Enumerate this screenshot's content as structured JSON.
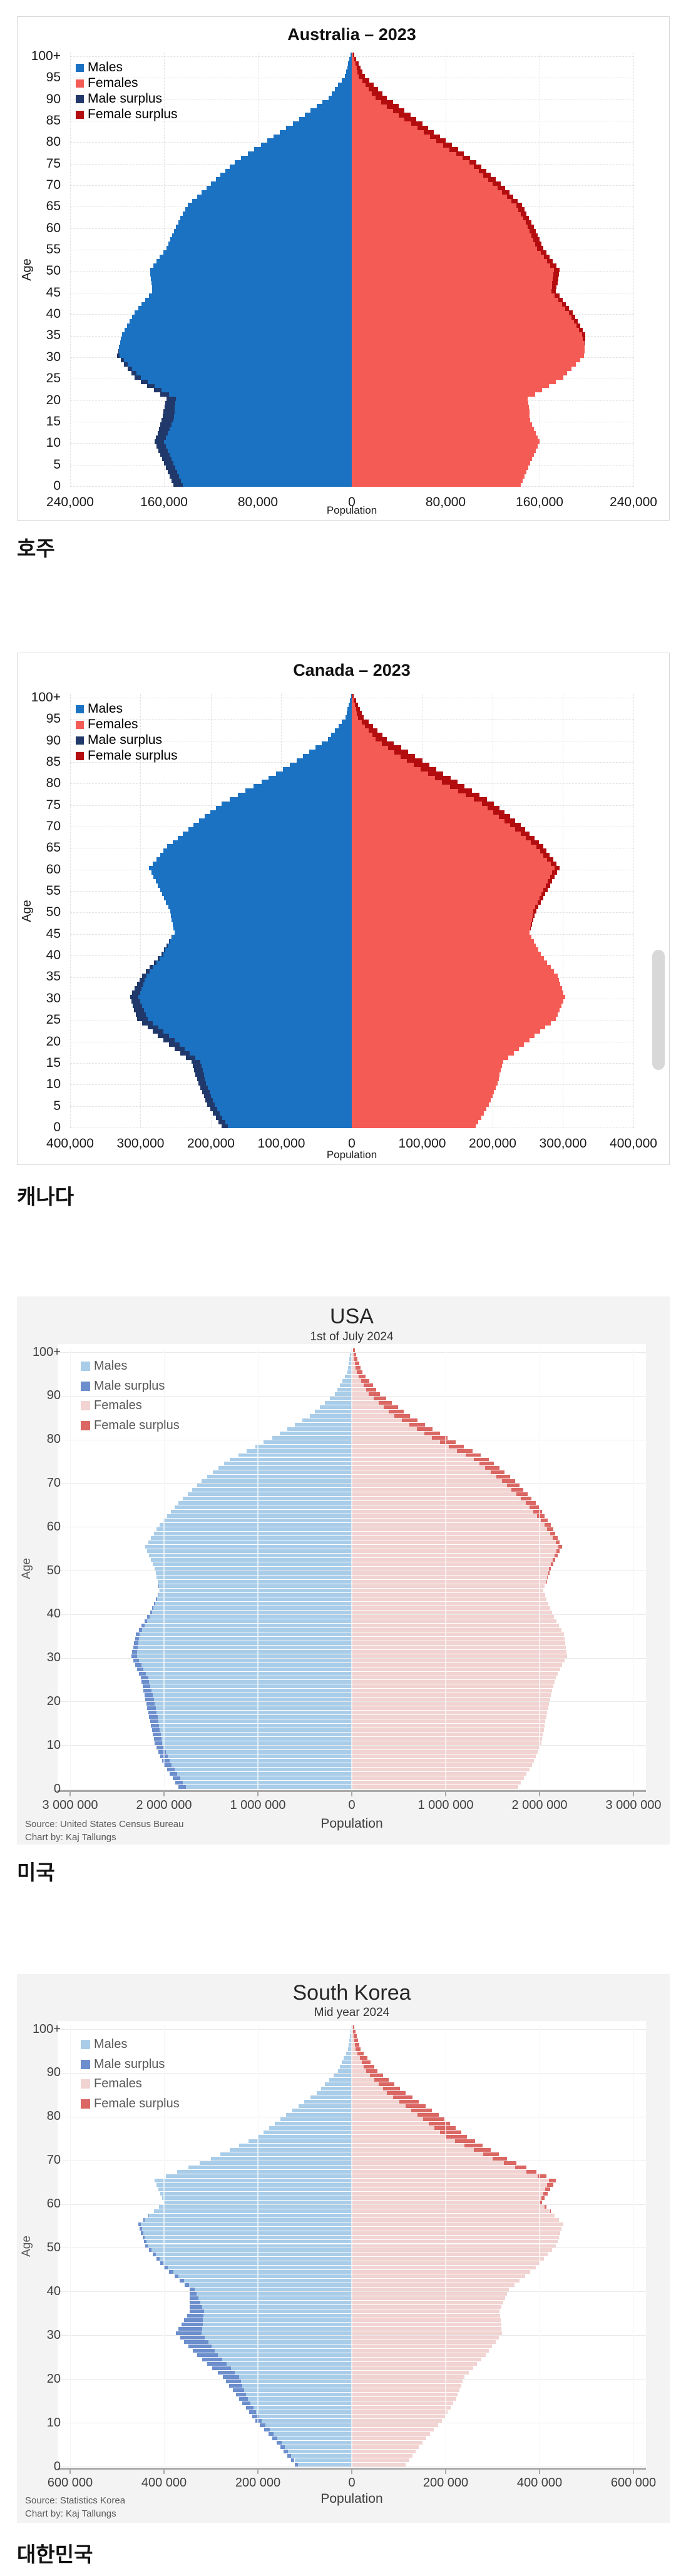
{
  "chart_data": [
    {
      "type": "bar",
      "variant": "population-pyramid",
      "country": "Australia",
      "title": "Australia – 2023",
      "subtitle": null,
      "caption": "호주",
      "xlabel": "Population",
      "ylabel": "Age",
      "legend": [
        {
          "label": "Males",
          "color": "#1B72C2"
        },
        {
          "label": "Females",
          "color": "#F55B55"
        },
        {
          "label": "Male surplus",
          "color": "#21386A"
        },
        {
          "label": "Female surplus",
          "color": "#B30D10"
        }
      ],
      "axis_max": 240000,
      "x_tick_labels": [
        "240,000",
        "160,000",
        "80,000",
        "0",
        "80,000",
        "160,000",
        "240,000"
      ],
      "y_tick_labels": [
        "0",
        "5",
        "10",
        "15",
        "20",
        "25",
        "30",
        "35",
        "40",
        "45",
        "50",
        "55",
        "60",
        "65",
        "70",
        "75",
        "80",
        "85",
        "90",
        "95",
        "100+"
      ],
      "ages": [
        0,
        5,
        10,
        15,
        20,
        25,
        30,
        35,
        40,
        45,
        50,
        55,
        60,
        65,
        70,
        75,
        80,
        85,
        90,
        95,
        100
      ],
      "series": [
        {
          "name": "Males",
          "values": [
            152000,
            160000,
            168000,
            162000,
            158000,
            185000,
            200000,
            196000,
            185000,
            170000,
            172000,
            158000,
            150000,
            140000,
            120000,
            100000,
            72000,
            45000,
            20000,
            6000,
            1000
          ]
        },
        {
          "name": "Females",
          "values": [
            144000,
            152000,
            160000,
            152000,
            150000,
            180000,
            198000,
            199000,
            188000,
            174000,
            177000,
            163000,
            155000,
            145000,
            127000,
            106000,
            80000,
            55000,
            30000,
            11000,
            2000
          ]
        }
      ],
      "source": null,
      "chart_by": null
    },
    {
      "type": "bar",
      "variant": "population-pyramid",
      "country": "Canada",
      "title": "Canada – 2023",
      "subtitle": null,
      "caption": "캐나다",
      "xlabel": "Population",
      "ylabel": "Age",
      "legend": [
        {
          "label": "Males",
          "color": "#1B72C2"
        },
        {
          "label": "Females",
          "color": "#F55B55"
        },
        {
          "label": "Male surplus",
          "color": "#21386A"
        },
        {
          "label": "Female surplus",
          "color": "#B30D10"
        }
      ],
      "axis_max": 400000,
      "x_tick_labels": [
        "400,000",
        "300,000",
        "200,000",
        "100,000",
        "0",
        "100,000",
        "200,000",
        "300,000",
        "400,000"
      ],
      "y_tick_labels": [
        "0",
        "5",
        "10",
        "15",
        "20",
        "25",
        "30",
        "35",
        "40",
        "45",
        "50",
        "55",
        "60",
        "65",
        "70",
        "75",
        "80",
        "85",
        "90",
        "95",
        "100+"
      ],
      "ages": [
        0,
        5,
        10,
        15,
        20,
        25,
        30,
        35,
        40,
        45,
        50,
        55,
        60,
        65,
        70,
        75,
        80,
        85,
        90,
        95,
        100
      ],
      "series": [
        {
          "name": "Males",
          "values": [
            185000,
            205000,
            218000,
            228000,
            268000,
            305000,
            315000,
            298000,
            270000,
            252000,
            258000,
            272000,
            288000,
            262000,
            225000,
            185000,
            128000,
            78000,
            34000,
            9000,
            1000
          ]
        },
        {
          "name": "Females",
          "values": [
            176000,
            195000,
            207000,
            215000,
            252000,
            290000,
            303000,
            292000,
            268000,
            252000,
            262000,
            278000,
            295000,
            272000,
            240000,
            202000,
            150000,
            100000,
            50000,
            17000,
            3000
          ]
        }
      ],
      "source": null,
      "chart_by": null
    },
    {
      "type": "bar",
      "variant": "population-pyramid",
      "country": "USA",
      "title": "USA",
      "subtitle": "1st of July 2024",
      "caption": "미국",
      "xlabel": "Population",
      "ylabel": "Age",
      "legend": [
        {
          "label": "Males",
          "color": "#A9CDE9"
        },
        {
          "label": "Male surplus",
          "color": "#6C8ECD"
        },
        {
          "label": "Females",
          "color": "#F1D3D1"
        },
        {
          "label": "Female surplus",
          "color": "#DA6763"
        }
      ],
      "axis_max": 3000000,
      "x_tick_labels": [
        "3 000 000",
        "2 000 000",
        "1 000 000",
        "0",
        "1 000 000",
        "2 000 000",
        "3 000 000"
      ],
      "y_tick_labels": [
        "0",
        "10",
        "20",
        "30",
        "40",
        "50",
        "60",
        "70",
        "80",
        "90",
        "100+"
      ],
      "ages": [
        0,
        5,
        10,
        15,
        20,
        25,
        30,
        35,
        40,
        45,
        50,
        55,
        60,
        65,
        70,
        75,
        80,
        85,
        90,
        95,
        100
      ],
      "series": [
        {
          "name": "Males",
          "values": [
            1850000,
            2000000,
            2100000,
            2150000,
            2200000,
            2250000,
            2350000,
            2300000,
            2150000,
            2050000,
            2100000,
            2200000,
            2050000,
            1850000,
            1600000,
            1300000,
            850000,
            450000,
            180000,
            50000,
            10000
          ]
        },
        {
          "name": "Females",
          "values": [
            1770000,
            1920000,
            2020000,
            2060000,
            2110000,
            2170000,
            2290000,
            2260000,
            2130000,
            2040000,
            2120000,
            2240000,
            2120000,
            1960000,
            1740000,
            1460000,
            1020000,
            620000,
            300000,
            110000,
            30000
          ]
        }
      ],
      "source": "Source: United States Census Bureau",
      "chart_by": "Chart by: Kaj Tallungs"
    },
    {
      "type": "bar",
      "variant": "population-pyramid",
      "country": "South Korea",
      "title": "South Korea",
      "subtitle": "Mid year 2024",
      "caption": "대한민국",
      "xlabel": "Population",
      "ylabel": "Age",
      "legend": [
        {
          "label": "Males",
          "color": "#A9CDE9"
        },
        {
          "label": "Male surplus",
          "color": "#6C8ECD"
        },
        {
          "label": "Females",
          "color": "#F1D3D1"
        },
        {
          "label": "Female surplus",
          "color": "#DA6763"
        }
      ],
      "axis_max": 600000,
      "x_tick_labels": [
        "600 000",
        "400 000",
        "200 000",
        "0",
        "200 000",
        "400 000",
        "600 000"
      ],
      "y_tick_labels": [
        "0",
        "10",
        "20",
        "30",
        "40",
        "50",
        "60",
        "70",
        "80",
        "90",
        "100+"
      ],
      "ages": [
        0,
        5,
        10,
        15,
        20,
        25,
        30,
        35,
        40,
        45,
        50,
        55,
        60,
        65,
        70,
        75,
        80,
        85,
        90,
        95,
        100
      ],
      "series": [
        {
          "name": "Males",
          "values": [
            122000,
            160000,
            205000,
            240000,
            275000,
            330000,
            375000,
            345000,
            345000,
            400000,
            440000,
            455000,
            400000,
            420000,
            300000,
            200000,
            140000,
            75000,
            30000,
            8000,
            2000
          ]
        },
        {
          "name": "Females",
          "values": [
            115000,
            150000,
            192000,
            222000,
            240000,
            285000,
            320000,
            315000,
            335000,
            392000,
            435000,
            450000,
            405000,
            435000,
            330000,
            245000,
            185000,
            115000,
            55000,
            18000,
            5000
          ]
        }
      ],
      "source": "Source: Statistics Korea",
      "chart_by": "Chart by: Kaj Tallungs"
    }
  ]
}
